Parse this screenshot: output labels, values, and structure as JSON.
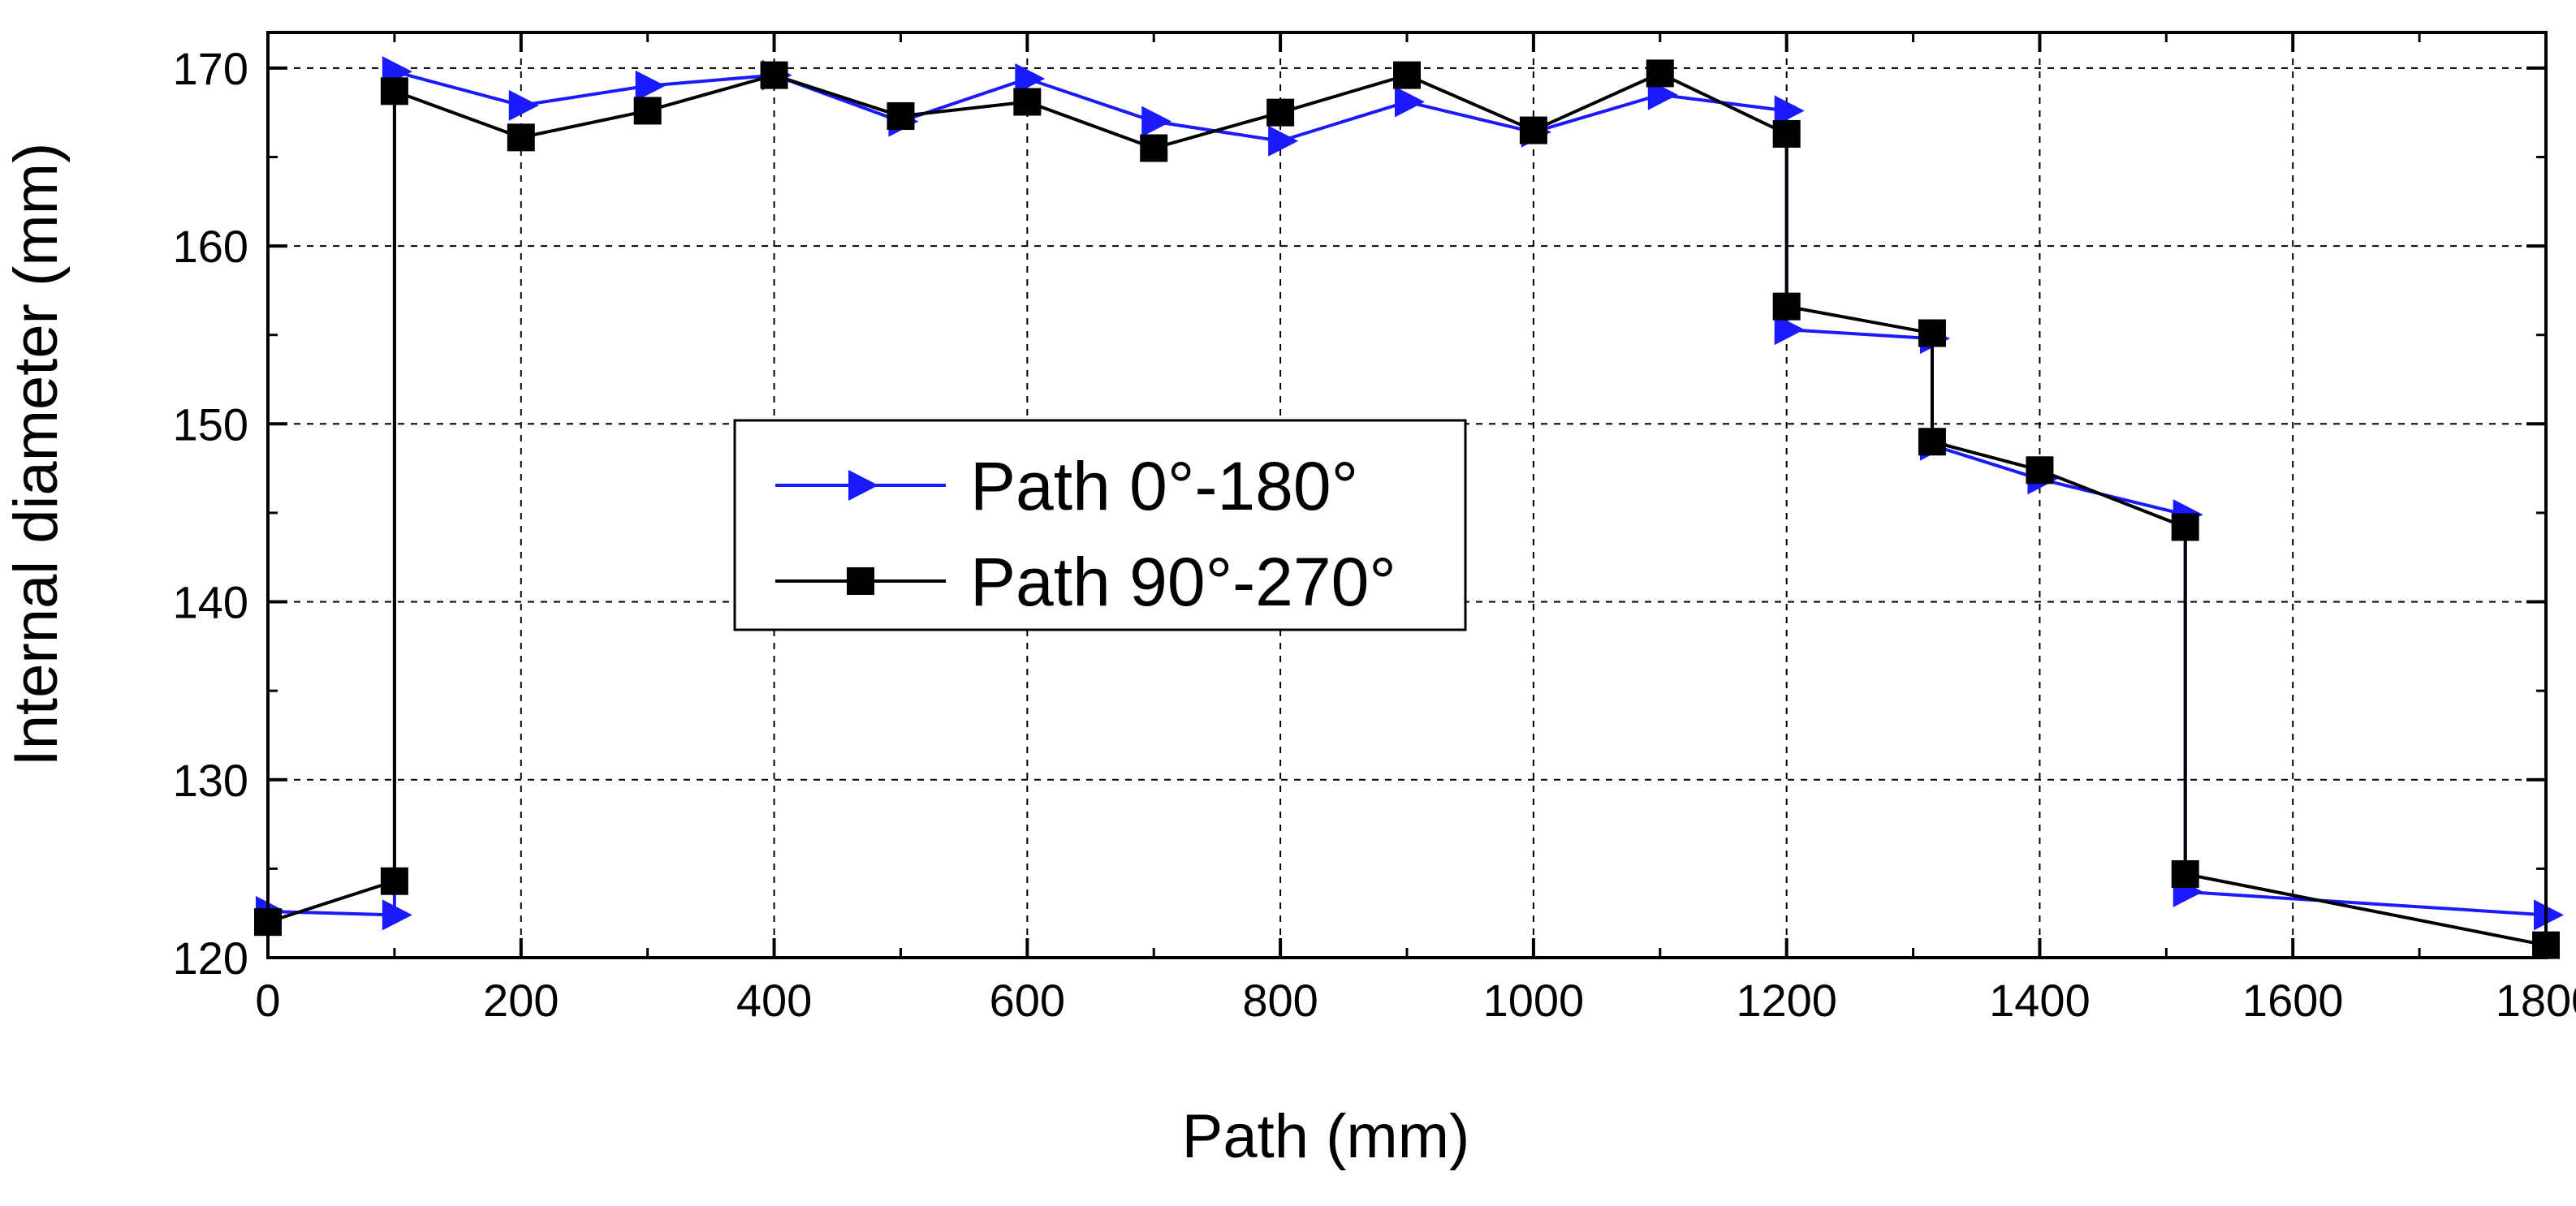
{
  "chart_data": {
    "type": "line",
    "title": "",
    "xlabel": "Path (mm)",
    "ylabel": "Internal diameter (mm)",
    "xlim": [
      0,
      1800
    ],
    "ylim": [
      120,
      172
    ],
    "x_ticks": [
      0,
      200,
      400,
      600,
      800,
      1000,
      1200,
      1400,
      1600,
      1800
    ],
    "x_tick_labels": [
      "0",
      "200",
      "400",
      "600",
      "800",
      "1000",
      "1200",
      "1400",
      "1600",
      "1800"
    ],
    "y_ticks": [
      120,
      130,
      140,
      150,
      160,
      170
    ],
    "y_tick_labels": [
      "120",
      "130",
      "140",
      "150",
      "160",
      "170"
    ],
    "grid": true,
    "legend_position": "center-left",
    "series": [
      {
        "name": "Path 0°-180°",
        "color": "#1a1aff",
        "marker": "triangle-right",
        "x": [
          0,
          100,
          100,
          200,
          300,
          400,
          500,
          600,
          700,
          800,
          900,
          1000,
          1100,
          1200,
          1200,
          1315,
          1315,
          1400,
          1515,
          1515,
          1800
        ],
        "y": [
          122.6,
          122.4,
          169.8,
          167.9,
          169.0,
          169.6,
          167.0,
          169.4,
          167.0,
          165.9,
          168.1,
          166.4,
          168.5,
          167.6,
          155.3,
          154.8,
          148.8,
          146.9,
          144.9,
          123.7,
          122.4
        ]
      },
      {
        "name": "Path 90°-270°",
        "color": "#000000",
        "marker": "square",
        "x": [
          0,
          100,
          100,
          200,
          300,
          400,
          500,
          600,
          700,
          800,
          900,
          1000,
          1100,
          1200,
          1200,
          1315,
          1315,
          1400,
          1515,
          1515,
          1800
        ],
        "y": [
          122.0,
          124.3,
          168.7,
          166.1,
          167.6,
          169.6,
          167.3,
          168.1,
          165.5,
          167.5,
          169.6,
          166.5,
          169.7,
          166.3,
          156.6,
          155.1,
          149.0,
          147.4,
          144.2,
          124.7,
          120.7
        ]
      }
    ]
  }
}
